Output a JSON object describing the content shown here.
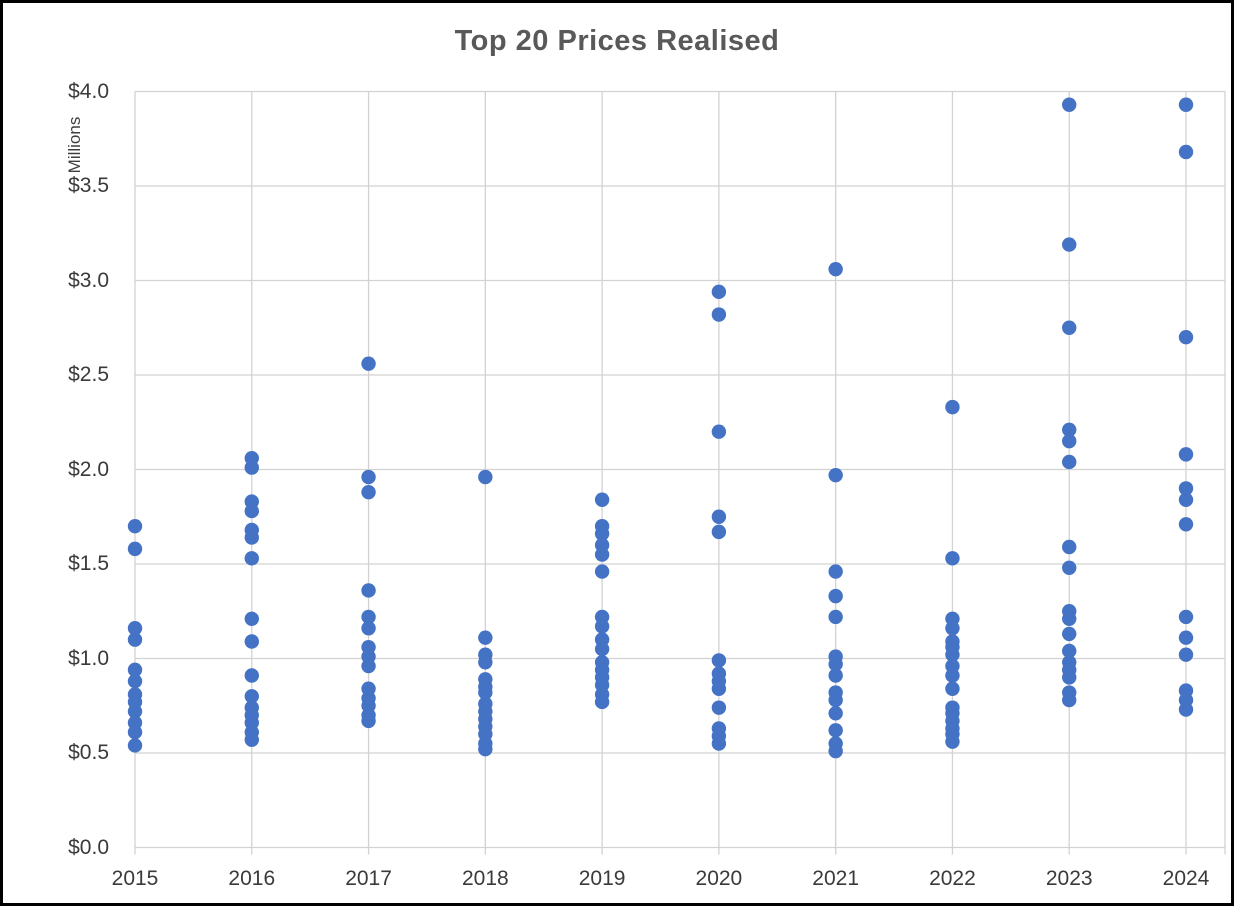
{
  "title": "Top 20 Prices Realised",
  "axis": {
    "y_unit_label": "Millions",
    "y_tick_labels": [
      "$4.0",
      "$3.5",
      "$3.0",
      "$2.5",
      "$2.0",
      "$1.5",
      "$1.0",
      "$0.5",
      "$0.0"
    ],
    "x_tick_labels": [
      "2015",
      "2016",
      "2017",
      "2018",
      "2019",
      "2020",
      "2021",
      "2022",
      "2023",
      "2024"
    ]
  },
  "colors": {
    "point": "#4472C4",
    "gridline": "#D2D2D2",
    "title_text": "#595959",
    "tick_text": "#3a3a3a"
  },
  "chart_data": {
    "type": "scatter",
    "title": "Top 20 Prices Realised",
    "xlabel": "",
    "ylabel": "Millions",
    "x_categories": [
      2015,
      2016,
      2017,
      2018,
      2019,
      2020,
      2021,
      2022,
      2023,
      2024
    ],
    "ylim": [
      0,
      4.0
    ],
    "y_tick_step": 0.5,
    "grid": true,
    "legend": "none",
    "units": "millions of dollars",
    "series": [
      {
        "name": "Top 20 Prices Realised",
        "points_by_year": {
          "2015": [
            1.7,
            1.58,
            1.16,
            1.1,
            0.94,
            0.88,
            0.81,
            0.77,
            0.72,
            0.66,
            0.61,
            0.54
          ],
          "2016": [
            2.06,
            2.01,
            1.83,
            1.78,
            1.68,
            1.64,
            1.53,
            1.21,
            1.09,
            0.91,
            0.8,
            0.74,
            0.7,
            0.66,
            0.61,
            0.57
          ],
          "2017": [
            2.56,
            1.96,
            1.88,
            1.36,
            1.22,
            1.16,
            1.06,
            1.01,
            0.96,
            0.84,
            0.79,
            0.75,
            0.7,
            0.67
          ],
          "2018": [
            1.96,
            1.11,
            1.02,
            0.98,
            0.89,
            0.85,
            0.82,
            0.76,
            0.72,
            0.68,
            0.64,
            0.6,
            0.55,
            0.52
          ],
          "2019": [
            1.84,
            1.7,
            1.66,
            1.6,
            1.55,
            1.46,
            1.22,
            1.17,
            1.1,
            1.05,
            0.98,
            0.94,
            0.9,
            0.86,
            0.81,
            0.77
          ],
          "2020": [
            2.94,
            2.82,
            2.2,
            1.75,
            1.67,
            0.99,
            0.92,
            0.88,
            0.84,
            0.74,
            0.63,
            0.59,
            0.55
          ],
          "2021": [
            3.06,
            1.97,
            1.46,
            1.33,
            1.22,
            1.01,
            0.97,
            0.91,
            0.82,
            0.78,
            0.71,
            0.62,
            0.55,
            0.51
          ],
          "2022": [
            2.33,
            1.53,
            1.21,
            1.16,
            1.09,
            1.06,
            1.02,
            0.96,
            0.91,
            0.84,
            0.74,
            0.71,
            0.67,
            0.63,
            0.6,
            0.56
          ],
          "2023": [
            3.93,
            3.19,
            2.75,
            2.21,
            2.15,
            2.04,
            1.59,
            1.48,
            1.25,
            1.21,
            1.13,
            1.04,
            0.98,
            0.94,
            0.9,
            0.82,
            0.78
          ],
          "2024": [
            3.93,
            3.68,
            2.7,
            2.08,
            1.9,
            1.84,
            1.71,
            1.22,
            1.11,
            1.02,
            0.83,
            0.78,
            0.73
          ]
        }
      }
    ]
  }
}
